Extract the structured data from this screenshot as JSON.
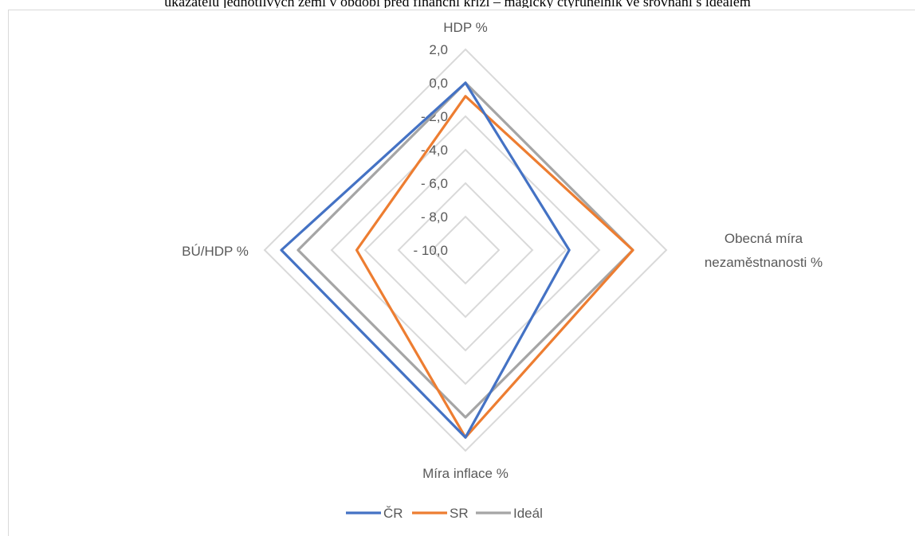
{
  "caption": "ukazatelů jednotlivých zemí v období před finanční krizí – magický čtyřúhelník ve srovnání s ideálem",
  "chart_data": {
    "type": "radar",
    "axes": [
      "HDP %",
      "Obecná míra nezaměstnanosti %",
      "Míra inflace %",
      "BÚ/HDP %"
    ],
    "axis_label_lines": [
      [
        "HDP %"
      ],
      [
        "Obecná míra",
        "nezaměstnanosti %"
      ],
      [
        "Míra inflace %"
      ],
      [
        "BÚ/HDP %"
      ]
    ],
    "rlim": [
      -10,
      2
    ],
    "ticks": [
      2.0,
      0.0,
      -2.0,
      -4.0,
      -6.0,
      -8.0,
      -10.0
    ],
    "tick_labels": [
      "2,0",
      "0,0",
      "- 2,0",
      "- 4,0",
      "- 6,0",
      "- 8,0",
      "- 10,0"
    ],
    "grid": true,
    "legend_position": "bottom",
    "series": [
      {
        "name": "ČR",
        "values": [
          0.0,
          -3.8,
          1.2,
          1.0
        ],
        "color": "#4472c4"
      },
      {
        "name": "SR",
        "values": [
          -0.8,
          0.0,
          1.2,
          -3.5
        ],
        "color": "#ed7d31"
      },
      {
        "name": "Ideál",
        "values": [
          0.0,
          0.0,
          0.0,
          0.0
        ],
        "color": "#a5a5a5"
      }
    ]
  }
}
